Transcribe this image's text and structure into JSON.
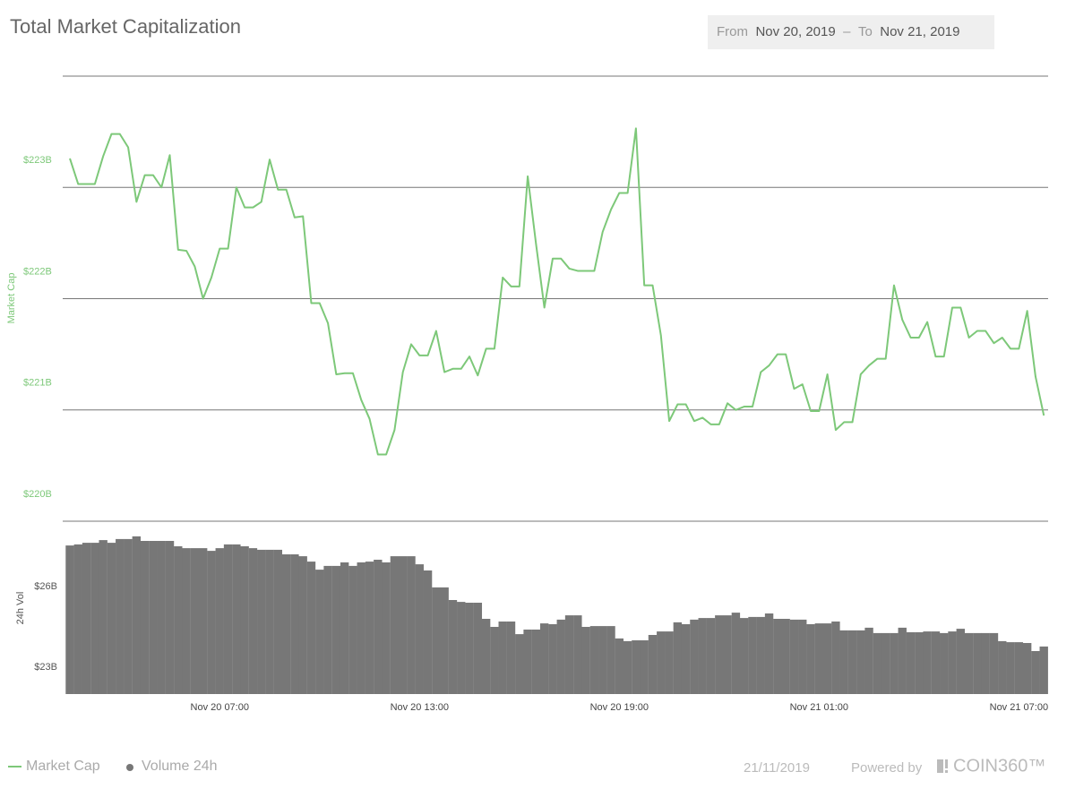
{
  "chart_data": {
    "type": "line",
    "title": "Total Market Capitalization",
    "y_label": "Market Cap",
    "y2_label": "24h Vol",
    "x": [
      "Nov 20 02:30",
      "Nov 20 02:45",
      "Nov 20 03:00",
      "Nov 20 03:15",
      "Nov 20 03:30",
      "Nov 20 03:45",
      "Nov 20 04:00",
      "Nov 20 04:15",
      "Nov 20 04:30",
      "Nov 20 04:45",
      "Nov 20 05:00",
      "Nov 20 05:15",
      "Nov 20 05:30",
      "Nov 20 05:45",
      "Nov 20 06:00",
      "Nov 20 06:15",
      "Nov 20 06:30",
      "Nov 20 06:45",
      "Nov 20 07:00",
      "Nov 20 07:15",
      "Nov 20 07:30",
      "Nov 20 07:45",
      "Nov 20 08:00",
      "Nov 20 08:15",
      "Nov 20 08:30",
      "Nov 20 08:45",
      "Nov 20 09:00",
      "Nov 20 09:15",
      "Nov 20 09:30",
      "Nov 20 09:45",
      "Nov 20 10:00",
      "Nov 20 10:15",
      "Nov 20 10:30",
      "Nov 20 10:45",
      "Nov 20 11:00",
      "Nov 20 11:15",
      "Nov 20 11:30",
      "Nov 20 11:45",
      "Nov 20 12:00",
      "Nov 20 12:15",
      "Nov 20 12:30",
      "Nov 20 12:45",
      "Nov 20 13:00",
      "Nov 20 13:15",
      "Nov 20 13:30",
      "Nov 20 13:45",
      "Nov 20 14:00",
      "Nov 20 14:15",
      "Nov 20 14:30",
      "Nov 20 14:45",
      "Nov 20 15:00",
      "Nov 20 15:15",
      "Nov 20 15:30",
      "Nov 20 15:45",
      "Nov 20 16:00",
      "Nov 20 16:15",
      "Nov 20 16:30",
      "Nov 20 16:45",
      "Nov 20 17:00",
      "Nov 20 17:15",
      "Nov 20 17:30",
      "Nov 20 17:45",
      "Nov 20 18:00",
      "Nov 20 18:15",
      "Nov 20 18:30",
      "Nov 20 18:45",
      "Nov 20 19:00",
      "Nov 20 19:15",
      "Nov 20 19:30",
      "Nov 20 19:45",
      "Nov 20 20:00",
      "Nov 20 20:15",
      "Nov 20 20:30",
      "Nov 20 20:45",
      "Nov 20 21:00",
      "Nov 20 21:15",
      "Nov 20 21:30",
      "Nov 20 21:45",
      "Nov 20 22:00",
      "Nov 20 22:15",
      "Nov 20 22:30",
      "Nov 20 22:45",
      "Nov 20 23:00",
      "Nov 20 23:15",
      "Nov 20 23:30",
      "Nov 20 23:45",
      "Nov 21 00:00",
      "Nov 21 00:15",
      "Nov 21 00:30",
      "Nov 21 00:45",
      "Nov 21 01:00",
      "Nov 21 01:15",
      "Nov 21 01:30",
      "Nov 21 01:45",
      "Nov 21 02:00",
      "Nov 21 02:15",
      "Nov 21 02:30",
      "Nov 21 02:45",
      "Nov 21 03:00",
      "Nov 21 03:15",
      "Nov 21 03:30",
      "Nov 21 03:45",
      "Nov 21 04:00",
      "Nov 21 04:15",
      "Nov 21 04:30",
      "Nov 21 04:45",
      "Nov 21 05:00",
      "Nov 21 05:15",
      "Nov 21 05:30",
      "Nov 21 05:45",
      "Nov 21 06:00",
      "Nov 21 06:15",
      "Nov 21 06:30",
      "Nov 21 06:45",
      "Nov 21 07:00",
      "Nov 21 07:15",
      "Nov 21 07:30",
      "Nov 21 07:45"
    ],
    "xticks": [
      "Nov 20 07:00",
      "Nov 20 13:00",
      "Nov 20 19:00",
      "Nov 21 01:00",
      "Nov 21 07:00"
    ],
    "ylim": [
      220,
      224
    ],
    "yticks": [
      {
        "value": 220,
        "label": "$220B"
      },
      {
        "value": 221,
        "label": "$221B"
      },
      {
        "value": 222,
        "label": "$222B"
      },
      {
        "value": 223,
        "label": "$223B"
      }
    ],
    "y2lim": [
      23,
      29.4
    ],
    "y2ticks": [
      {
        "value": 23,
        "label": "$23B"
      },
      {
        "value": 26,
        "label": "$26B"
      }
    ],
    "grid": true,
    "series": [
      {
        "name": "Market Cap",
        "type": "line",
        "color": "#7dc879",
        "values": [
          223.26,
          223.03,
          223.03,
          223.03,
          223.28,
          223.48,
          223.48,
          223.36,
          222.87,
          223.11,
          223.11,
          223.0,
          223.29,
          222.44,
          222.43,
          222.29,
          222.0,
          222.19,
          222.45,
          222.45,
          223.0,
          222.82,
          222.82,
          222.87,
          223.25,
          222.98,
          222.98,
          222.73,
          222.74,
          221.96,
          221.96,
          221.78,
          221.32,
          221.33,
          221.33,
          221.09,
          220.92,
          220.6,
          220.6,
          220.82,
          221.34,
          221.59,
          221.49,
          221.49,
          221.71,
          221.34,
          221.37,
          221.37,
          221.48,
          221.31,
          221.55,
          221.55,
          222.19,
          222.11,
          222.11,
          223.1,
          222.49,
          221.92,
          222.36,
          222.36,
          222.27,
          222.25,
          222.25,
          222.25,
          222.6,
          222.8,
          222.95,
          222.95,
          223.53,
          222.12,
          222.12,
          221.67,
          220.9,
          221.05,
          221.05,
          220.9,
          220.93,
          220.87,
          220.87,
          221.06,
          221.0,
          221.03,
          221.03,
          221.34,
          221.4,
          221.5,
          221.5,
          221.19,
          221.23,
          220.99,
          220.99,
          221.32,
          220.82,
          220.89,
          220.89,
          221.32,
          221.4,
          221.46,
          221.46,
          222.12,
          221.81,
          221.65,
          221.65,
          221.79,
          221.48,
          221.48,
          221.92,
          221.92,
          221.65,
          221.71,
          221.71,
          221.6,
          221.65,
          221.55,
          221.55,
          221.89,
          221.3,
          220.95
        ]
      },
      {
        "name": "Volume 24h",
        "type": "bar",
        "axis": "y2",
        "color": "#777777",
        "values": [
          28.53,
          28.57,
          28.63,
          28.63,
          28.73,
          28.63,
          28.77,
          28.77,
          28.87,
          28.7,
          28.7,
          28.7,
          28.7,
          28.5,
          28.43,
          28.43,
          28.43,
          28.33,
          28.43,
          28.57,
          28.57,
          28.5,
          28.43,
          28.37,
          28.37,
          28.37,
          28.2,
          28.2,
          28.13,
          27.93,
          27.63,
          27.77,
          27.77,
          27.9,
          27.77,
          27.9,
          27.93,
          28.0,
          27.9,
          28.13,
          28.13,
          28.13,
          27.83,
          27.6,
          26.97,
          26.97,
          26.5,
          26.43,
          26.4,
          26.4,
          25.8,
          25.5,
          25.7,
          25.7,
          25.23,
          25.4,
          25.4,
          25.63,
          25.6,
          25.77,
          25.93,
          25.93,
          25.5,
          25.53,
          25.53,
          25.53,
          25.07,
          24.97,
          25.0,
          25.0,
          25.2,
          25.33,
          25.33,
          25.67,
          25.6,
          25.77,
          25.83,
          25.83,
          25.93,
          25.93,
          26.03,
          25.83,
          25.87,
          25.87,
          26.0,
          25.8,
          25.8,
          25.77,
          25.77,
          25.6,
          25.63,
          25.63,
          25.7,
          25.37,
          25.37,
          25.37,
          25.47,
          25.27,
          25.27,
          25.27,
          25.47,
          25.3,
          25.3,
          25.33,
          25.33,
          25.27,
          25.33,
          25.43,
          25.27,
          25.27,
          25.27,
          25.27,
          24.97,
          24.93,
          24.93,
          24.9,
          24.6,
          24.77
        ]
      }
    ]
  },
  "date_range": {
    "from_label": "From",
    "from": "Nov 20, 2019",
    "separator": "–",
    "to_label": "To",
    "to": "Nov 21, 2019"
  },
  "footer": {
    "date": "21/11/2019",
    "powered_by": "Powered by",
    "brand": "COIN360™"
  }
}
